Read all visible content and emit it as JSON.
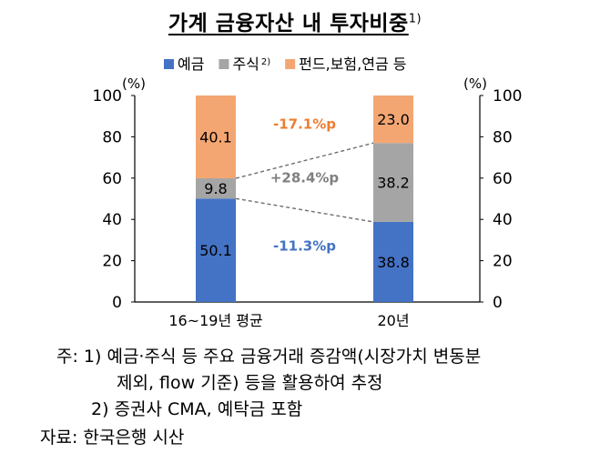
{
  "title": "가계 금융자산 내 투자비중",
  "title_note_marker": "1)",
  "chart_data": {
    "type": "bar",
    "stacked": true,
    "categories": [
      "16~19년 평균",
      "20년"
    ],
    "series": [
      {
        "name": "예금",
        "values": [
          50.1,
          38.8
        ],
        "color": "#4472C4"
      },
      {
        "name": "주식",
        "name_note": "2)",
        "values": [
          9.8,
          38.2
        ],
        "color": "#A5A5A5"
      },
      {
        "name": "펀드,보험,연금 등",
        "values": [
          40.1,
          23.0
        ],
        "color": "#F4A672"
      }
    ],
    "data_labels": [
      [
        "50.1",
        "9.8",
        "40.1"
      ],
      [
        "38.8",
        "38.2",
        "23.0"
      ]
    ],
    "ylim": [
      0,
      100
    ],
    "yticks": [
      "0",
      "20",
      "40",
      "60",
      "80",
      "100"
    ],
    "left_unit": "(%)",
    "right_unit": "(%)",
    "legend_position": "top",
    "annotations": [
      {
        "text": "-17.1%p",
        "series": "펀드,보험,연금 등",
        "color": "#ED7D31"
      },
      {
        "text": "+28.4%p",
        "series": "주식",
        "color": "#7F7F7F"
      },
      {
        "text": "-11.3%p",
        "series": "예금",
        "color": "#4472C4"
      }
    ]
  },
  "notes": {
    "line1": "주:  1)  예금·주식 등 주요 금융거래 증감액(시장가치 변동분",
    "line2": "제외, flow 기준) 등을 활용하여 추정",
    "line3": "2) 증권사 CMA, 예탁금 포함",
    "source": "자료:  한국은행 시산"
  }
}
